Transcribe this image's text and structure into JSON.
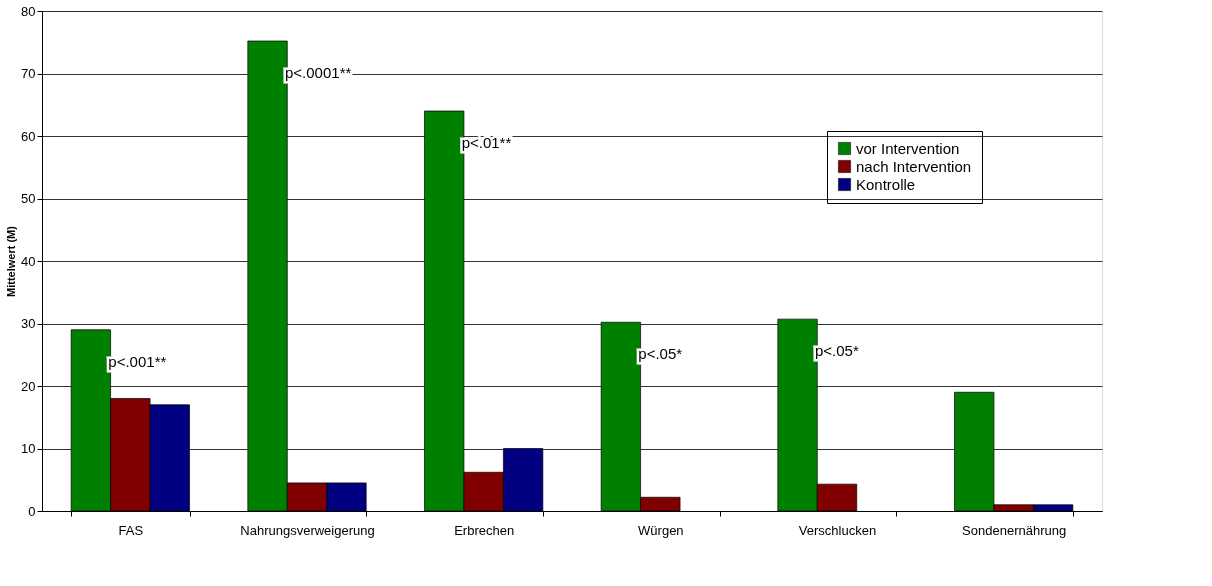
{
  "chart_data": {
    "type": "bar",
    "ylabel": "Mittelwert (M)",
    "categories": [
      "FAS",
      "Nahrungsverweigerung",
      "Erbrechen",
      "Würgen",
      "Verschlucken",
      "Sondenernährung"
    ],
    "series": [
      {
        "name": "vor Intervention",
        "color": "#008000",
        "values": [
          29,
          75.2,
          64,
          30.2,
          30.7,
          19
        ]
      },
      {
        "name": "nach Intervention",
        "color": "#800000",
        "values": [
          18,
          4.5,
          6.2,
          2.2,
          4.3,
          1
        ]
      },
      {
        "name": "Kontrolle",
        "color": "#000080",
        "values": [
          17,
          4.5,
          10,
          null,
          null,
          1
        ]
      }
    ],
    "annotations": [
      "p<.001**",
      "p<.0001**",
      "p<.01**",
      "p<.05*",
      "p<.05*"
    ],
    "ylim": [
      0,
      80
    ],
    "yticks": [
      0,
      10,
      20,
      30,
      40,
      50,
      60,
      70,
      80
    ],
    "grid": "y",
    "legend": "top right"
  }
}
